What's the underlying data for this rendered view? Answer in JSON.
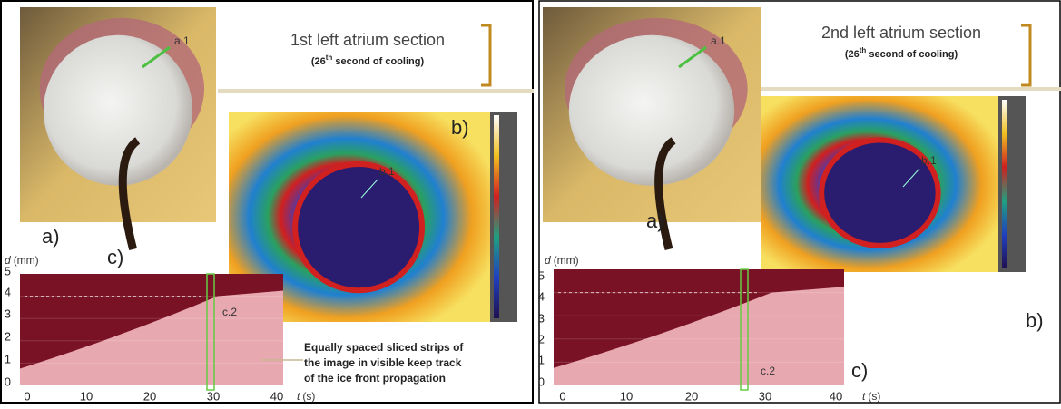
{
  "panels": [
    {
      "title": "1st left atrium section",
      "subtitle": {
        "pre": "(26",
        "sup": "th",
        "post": " second  of cooling)"
      },
      "labels": {
        "a": "a)",
        "b": "b)",
        "c": "c)",
        "a1": "a.1",
        "b1": "b.1",
        "c2": "c.2"
      },
      "y_axis": {
        "symbol": "d",
        "unit": "(mm)",
        "ticks": [
          0,
          1,
          2,
          3,
          4,
          5
        ]
      },
      "x_axis": {
        "symbol": "t",
        "unit": "(s)",
        "ticks": [
          0,
          10,
          20,
          30,
          40
        ]
      },
      "note": [
        "Equally spaced sliced strips of",
        "the image in visible keep track",
        "of the ice front propagation"
      ]
    },
    {
      "title": "2nd left atrium section",
      "subtitle": {
        "pre": "(26",
        "sup": "th",
        "post": " second  of cooling)"
      },
      "labels": {
        "a": "a)",
        "b": "b)",
        "c": "c)",
        "a1": "a.1",
        "b1": "b.1",
        "c2": "c.2"
      },
      "y_axis": {
        "symbol": "d",
        "unit": "(mm)",
        "ticks": [
          0,
          1,
          2,
          3,
          4,
          5
        ]
      },
      "x_axis": {
        "symbol": "t",
        "unit": "(s)",
        "ticks": [
          0,
          10,
          20,
          30,
          40
        ]
      }
    }
  ]
}
